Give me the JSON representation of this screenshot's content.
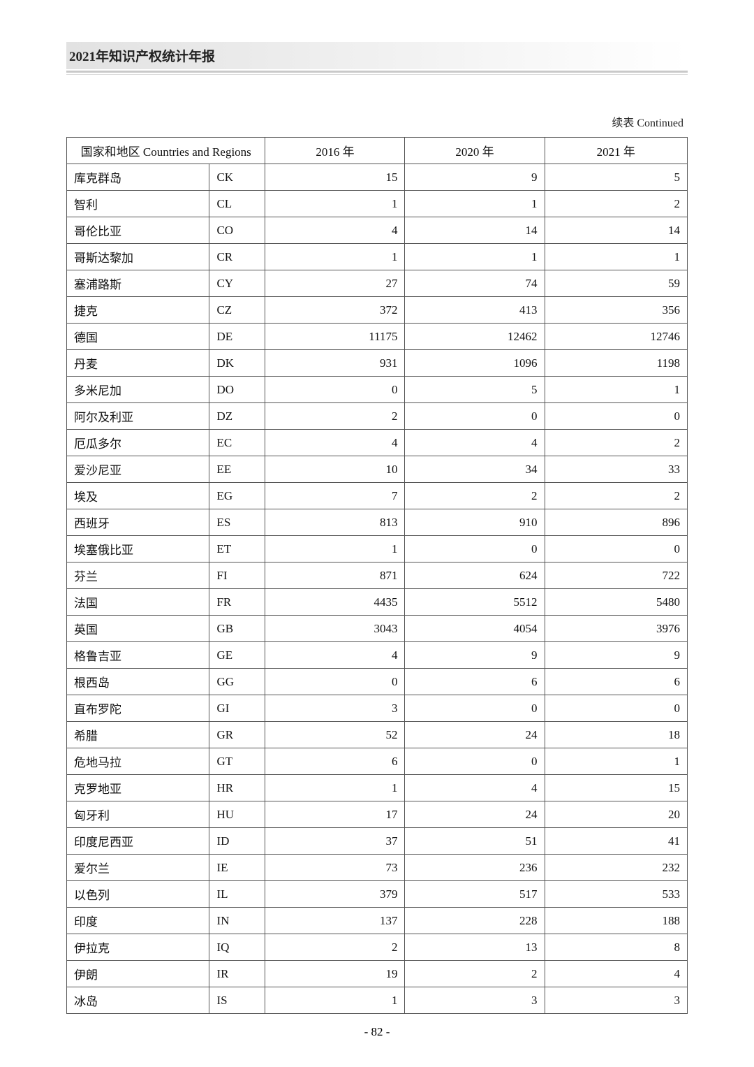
{
  "header": {
    "title": "2021年知识产权统计年报"
  },
  "continued_label": "续表 Continued",
  "table": {
    "header": {
      "countries_label": "国家和地区 Countries and Regions",
      "year1": "2016 年",
      "year2": "2020 年",
      "year3": "2021 年"
    },
    "rows": [
      {
        "name": "库克群岛",
        "code": "CK",
        "y1": "15",
        "y2": "9",
        "y3": "5"
      },
      {
        "name": "智利",
        "code": "CL",
        "y1": "1",
        "y2": "1",
        "y3": "2"
      },
      {
        "name": "哥伦比亚",
        "code": "CO",
        "y1": "4",
        "y2": "14",
        "y3": "14"
      },
      {
        "name": "哥斯达黎加",
        "code": "CR",
        "y1": "1",
        "y2": "1",
        "y3": "1"
      },
      {
        "name": "塞浦路斯",
        "code": "CY",
        "y1": "27",
        "y2": "74",
        "y3": "59"
      },
      {
        "name": "捷克",
        "code": "CZ",
        "y1": "372",
        "y2": "413",
        "y3": "356"
      },
      {
        "name": "德国",
        "code": "DE",
        "y1": "11175",
        "y2": "12462",
        "y3": "12746"
      },
      {
        "name": "丹麦",
        "code": "DK",
        "y1": "931",
        "y2": "1096",
        "y3": "1198"
      },
      {
        "name": "多米尼加",
        "code": "DO",
        "y1": "0",
        "y2": "5",
        "y3": "1"
      },
      {
        "name": "阿尔及利亚",
        "code": "DZ",
        "y1": "2",
        "y2": "0",
        "y3": "0"
      },
      {
        "name": "厄瓜多尔",
        "code": "EC",
        "y1": "4",
        "y2": "4",
        "y3": "2"
      },
      {
        "name": "爱沙尼亚",
        "code": "EE",
        "y1": "10",
        "y2": "34",
        "y3": "33"
      },
      {
        "name": "埃及",
        "code": "EG",
        "y1": "7",
        "y2": "2",
        "y3": "2"
      },
      {
        "name": "西班牙",
        "code": "ES",
        "y1": "813",
        "y2": "910",
        "y3": "896"
      },
      {
        "name": "埃塞俄比亚",
        "code": "ET",
        "y1": "1",
        "y2": "0",
        "y3": "0"
      },
      {
        "name": "芬兰",
        "code": "FI",
        "y1": "871",
        "y2": "624",
        "y3": "722"
      },
      {
        "name": "法国",
        "code": "FR",
        "y1": "4435",
        "y2": "5512",
        "y3": "5480"
      },
      {
        "name": "英国",
        "code": "GB",
        "y1": "3043",
        "y2": "4054",
        "y3": "3976"
      },
      {
        "name": "格鲁吉亚",
        "code": "GE",
        "y1": "4",
        "y2": "9",
        "y3": "9"
      },
      {
        "name": "根西岛",
        "code": "GG",
        "y1": "0",
        "y2": "6",
        "y3": "6"
      },
      {
        "name": "直布罗陀",
        "code": "GI",
        "y1": "3",
        "y2": "0",
        "y3": "0"
      },
      {
        "name": "希腊",
        "code": "GR",
        "y1": "52",
        "y2": "24",
        "y3": "18"
      },
      {
        "name": "危地马拉",
        "code": "GT",
        "y1": "6",
        "y2": "0",
        "y3": "1"
      },
      {
        "name": "克罗地亚",
        "code": "HR",
        "y1": "1",
        "y2": "4",
        "y3": "15"
      },
      {
        "name": "匈牙利",
        "code": "HU",
        "y1": "17",
        "y2": "24",
        "y3": "20"
      },
      {
        "name": "印度尼西亚",
        "code": "ID",
        "y1": "37",
        "y2": "51",
        "y3": "41"
      },
      {
        "name": "爱尔兰",
        "code": "IE",
        "y1": "73",
        "y2": "236",
        "y3": "232"
      },
      {
        "name": "以色列",
        "code": "IL",
        "y1": "379",
        "y2": "517",
        "y3": "533"
      },
      {
        "name": "印度",
        "code": "IN",
        "y1": "137",
        "y2": "228",
        "y3": "188"
      },
      {
        "name": "伊拉克",
        "code": "IQ",
        "y1": "2",
        "y2": "13",
        "y3": "8"
      },
      {
        "name": "伊朗",
        "code": "IR",
        "y1": "19",
        "y2": "2",
        "y3": "4"
      },
      {
        "name": "冰岛",
        "code": "IS",
        "y1": "1",
        "y2": "3",
        "y3": "3"
      }
    ]
  },
  "page_number": "- 82 -",
  "style": {
    "border_color": "#555555",
    "header_band_bg": "#e2e2e2",
    "rule_color": "#c9c9c9",
    "font_size_body": 17,
    "font_size_header": 19
  }
}
